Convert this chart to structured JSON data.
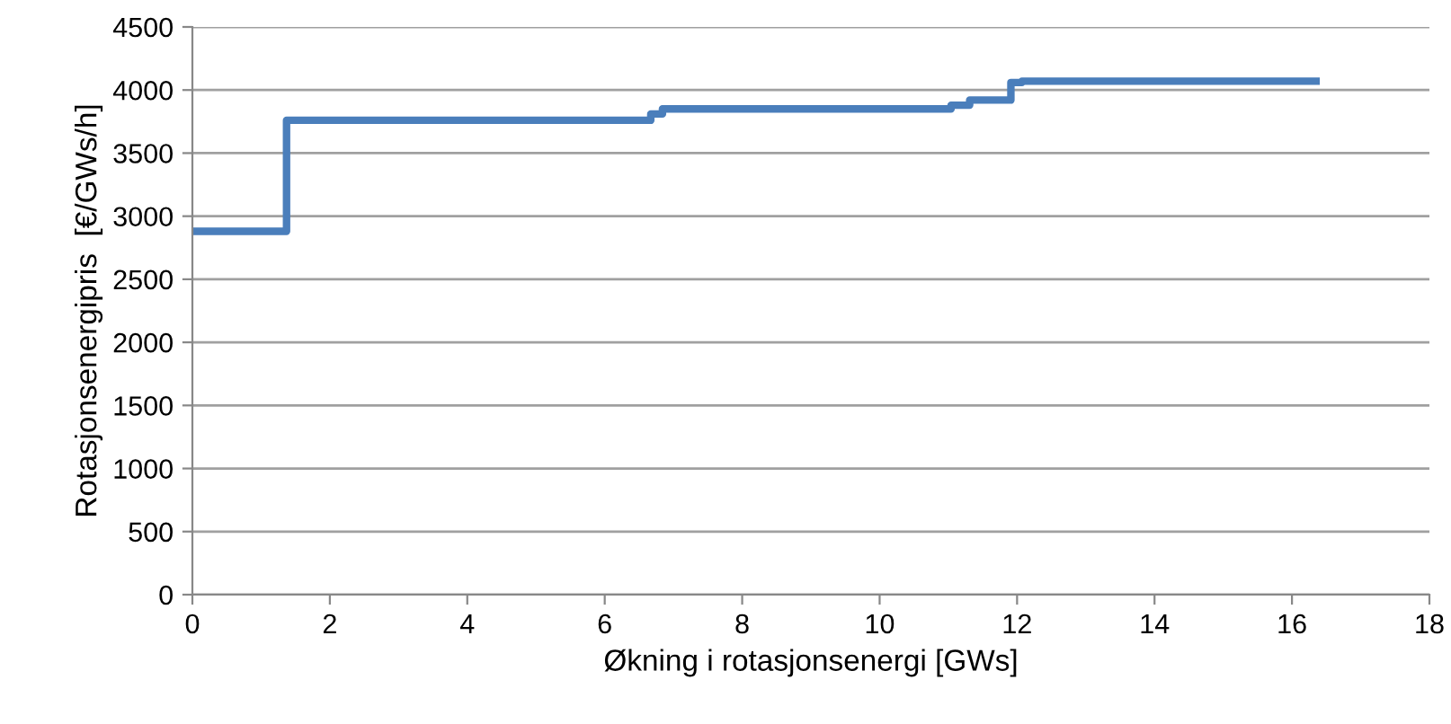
{
  "chart_data": {
    "type": "step",
    "xlabel": "Økning i rotasjonsenergi [GWs]",
    "ylabel": "Rotasjonsenergipris  [€/GWs/h]",
    "series": [
      {
        "color": "#4a7ebb",
        "x": [
          0,
          1.37,
          6.67,
          6.84,
          11.04,
          11.31,
          11.91,
          12.07,
          16.35
        ],
        "values": [
          2880,
          3760,
          3810,
          3850,
          3880,
          3920,
          4060,
          4070,
          4070
        ]
      }
    ],
    "xlim": [
      0,
      18
    ],
    "xticks": [
      0,
      2,
      4,
      6,
      8,
      10,
      12,
      14,
      16,
      18
    ],
    "ylim": [
      0,
      4500
    ],
    "yticks": [
      0,
      500,
      1000,
      1500,
      2000,
      2500,
      3000,
      3500,
      4000,
      4500
    ],
    "grid": "y",
    "legend": false
  }
}
